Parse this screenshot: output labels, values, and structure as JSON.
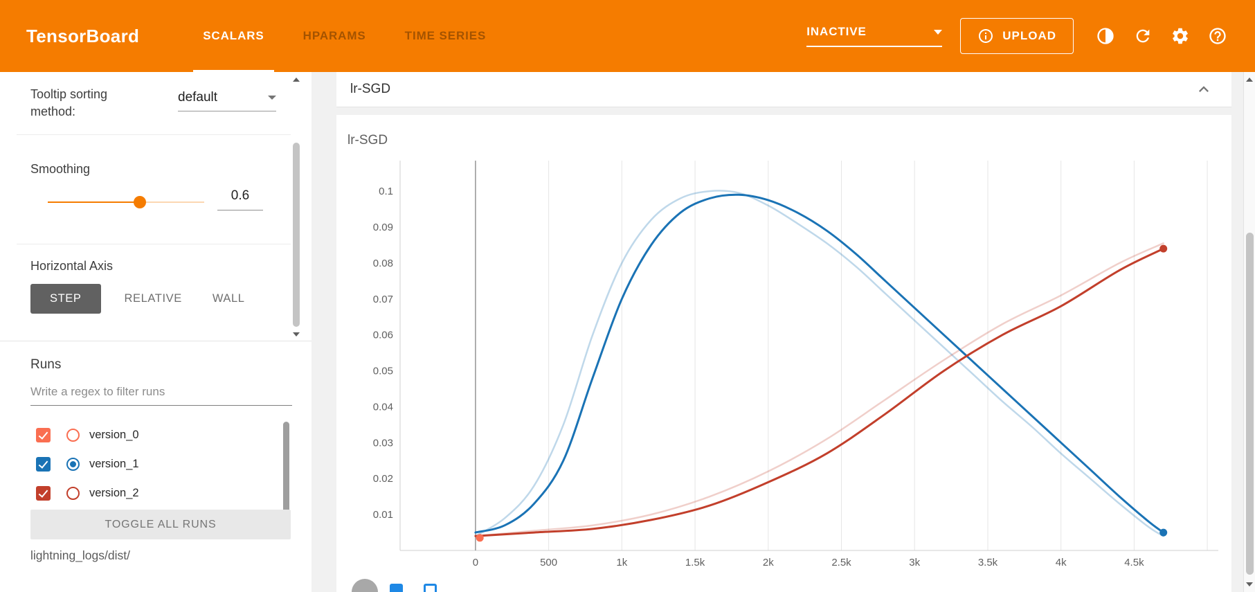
{
  "header": {
    "logo": "TensorBoard",
    "tabs": [
      {
        "label": "SCALARS",
        "active": true
      },
      {
        "label": "HPARAMS",
        "active": false
      },
      {
        "label": "TIME SERIES",
        "active": false
      }
    ],
    "status": "INACTIVE",
    "upload": "UPLOAD",
    "icon_buttons": [
      {
        "name": "contrast-icon"
      },
      {
        "name": "refresh-icon"
      },
      {
        "name": "settings-icon"
      },
      {
        "name": "help-icon"
      }
    ]
  },
  "theme": {
    "header_bg": "#f57c00",
    "accent": "#f57c00",
    "active_axis_button_bg": "#616161"
  },
  "sidebar": {
    "tooltip_sorting_label": "Tooltip sorting method:",
    "tooltip_sorting_value": "default",
    "smoothing_label": "Smoothing",
    "smoothing_value": "0.6",
    "horizontal_axis_label": "Horizontal Axis",
    "axis_options": [
      {
        "label": "STEP",
        "active": true
      },
      {
        "label": "RELATIVE",
        "active": false
      },
      {
        "label": "WALL",
        "active": false
      }
    ],
    "runs_label": "Runs",
    "filter_placeholder": "Write a regex to filter runs",
    "runs": [
      {
        "name": "version_0",
        "color": "#fa6e51",
        "checked": true,
        "radio_selected": false
      },
      {
        "name": "version_1",
        "color": "#1a73b5",
        "checked": true,
        "radio_selected": true
      },
      {
        "name": "version_2",
        "color": "#c23f2b",
        "checked": true,
        "radio_selected": false
      }
    ],
    "toggle_all_label": "TOGGLE ALL RUNS",
    "log_path": "lightning_logs/dist/"
  },
  "main": {
    "section_title": "lr-SGD"
  },
  "chart_data": {
    "type": "line",
    "title": "lr-SGD",
    "xlabel": "",
    "ylabel": "",
    "legend": "none",
    "grid": "vertical",
    "x_domain": [
      -515,
      5075
    ],
    "y_domain": [
      0,
      0.1085
    ],
    "x_ticks": [
      {
        "v": 0,
        "label": "0"
      },
      {
        "v": 500,
        "label": "500"
      },
      {
        "v": 1000,
        "label": "1k"
      },
      {
        "v": 1500,
        "label": "1.5k"
      },
      {
        "v": 2000,
        "label": "2k"
      },
      {
        "v": 2500,
        "label": "2.5k"
      },
      {
        "v": 3000,
        "label": "3k"
      },
      {
        "v": 3500,
        "label": "3.5k"
      },
      {
        "v": 4000,
        "label": "4k"
      },
      {
        "v": 4500,
        "label": "4.5k"
      },
      {
        "v": 5000,
        "label": ""
      }
    ],
    "y_ticks": [
      {
        "v": 0.01,
        "label": "0.01"
      },
      {
        "v": 0.02,
        "label": "0.02"
      },
      {
        "v": 0.03,
        "label": "0.03"
      },
      {
        "v": 0.04,
        "label": "0.04"
      },
      {
        "v": 0.05,
        "label": "0.05"
      },
      {
        "v": 0.06,
        "label": "0.06"
      },
      {
        "v": 0.07,
        "label": "0.07"
      },
      {
        "v": 0.08,
        "label": "0.08"
      },
      {
        "v": 0.09,
        "label": "0.09"
      },
      {
        "v": 0.1,
        "label": "0.1"
      }
    ],
    "series": [
      {
        "name": "version_1_raw",
        "run": "version_1",
        "kind": "raw",
        "color": "#1a73b5",
        "opacity": 0.28,
        "width": 2.5,
        "x": [
          0,
          200,
          400,
          600,
          800,
          1000,
          1200,
          1400,
          1600,
          1800,
          2000,
          2200,
          2400,
          2600,
          2800,
          3000,
          3200,
          3400,
          3600,
          3800,
          4000,
          4200,
          4400,
          4600,
          4700
        ],
        "y": [
          0.004,
          0.009,
          0.018,
          0.035,
          0.06,
          0.08,
          0.092,
          0.098,
          0.1,
          0.0995,
          0.096,
          0.091,
          0.0855,
          0.079,
          0.0715,
          0.064,
          0.0565,
          0.049,
          0.0415,
          0.0345,
          0.027,
          0.02,
          0.013,
          0.0065,
          0.004
        ]
      },
      {
        "name": "version_2_raw",
        "run": "version_2",
        "kind": "raw",
        "color": "#c23f2b",
        "opacity": 0.25,
        "width": 2.5,
        "x": [
          0,
          400,
          800,
          1200,
          1600,
          2000,
          2400,
          2800,
          3200,
          3600,
          4000,
          4400,
          4700
        ],
        "y": [
          0.004,
          0.0055,
          0.007,
          0.01,
          0.015,
          0.022,
          0.031,
          0.042,
          0.053,
          0.063,
          0.071,
          0.08,
          0.0855
        ]
      },
      {
        "name": "version_1_smoothed",
        "run": "version_1",
        "kind": "smoothed",
        "color": "#1a73b5",
        "opacity": 1,
        "width": 3,
        "x": [
          0,
          200,
          400,
          600,
          800,
          1000,
          1200,
          1400,
          1600,
          1800,
          2000,
          2200,
          2400,
          2600,
          2800,
          3000,
          3200,
          3400,
          3600,
          3800,
          4000,
          4200,
          4400,
          4600,
          4700
        ],
        "y": [
          0.005,
          0.007,
          0.013,
          0.025,
          0.048,
          0.07,
          0.085,
          0.094,
          0.098,
          0.099,
          0.0975,
          0.094,
          0.089,
          0.0825,
          0.075,
          0.0675,
          0.06,
          0.0525,
          0.045,
          0.0375,
          0.03,
          0.0225,
          0.015,
          0.008,
          0.005
        ]
      },
      {
        "name": "version_2_smoothed",
        "run": "version_2",
        "kind": "smoothed",
        "color": "#c23f2b",
        "opacity": 1,
        "width": 3,
        "x": [
          0,
          400,
          800,
          1200,
          1600,
          2000,
          2400,
          2800,
          3200,
          3600,
          4000,
          4400,
          4700
        ],
        "y": [
          0.004,
          0.005,
          0.006,
          0.0085,
          0.0125,
          0.019,
          0.027,
          0.038,
          0.05,
          0.06,
          0.068,
          0.078,
          0.084
        ]
      }
    ],
    "markers": [
      {
        "run": "version_0",
        "x": 30,
        "y": 0.0035,
        "color": "#fa6e51"
      },
      {
        "run": "version_2",
        "x": 4700,
        "y": 0.084,
        "color": "#c23f2b"
      },
      {
        "run": "version_1",
        "x": 4700,
        "y": 0.005,
        "color": "#1a73b5"
      }
    ]
  }
}
